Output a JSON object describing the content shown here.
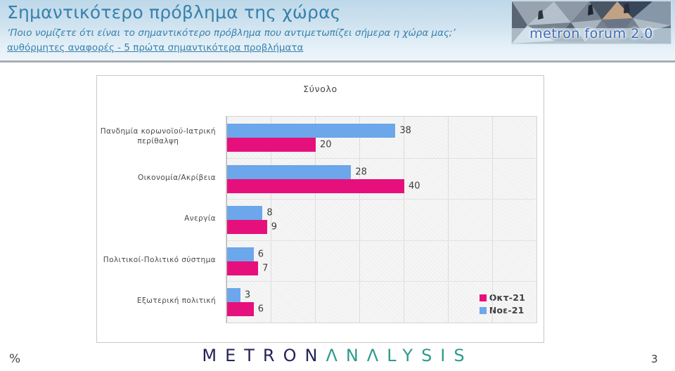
{
  "header": {
    "title": "Σημαντικότερο πρόβλημα της χώρας",
    "subtitle": "‘Ποιο νομίζετε ότι  είναι το σημαντικότερο πρόβλημα που αντιμετωπίζει σήμερα η χώρα μας;’",
    "note": "αυθόρμητες αναφορές - 5 πρώτα σημαντικότερα προβλήματα",
    "logo_text": "metron forum 2.0"
  },
  "chart_data": {
    "type": "bar",
    "orientation": "horizontal",
    "title": "Σύνολο",
    "categories": [
      "Πανδημία κορωνοϊού-Ιατρική\nπερίθαλψη",
      "Οικονομία/Ακρίβεια",
      "Ανεργία",
      "Πολιτικοί-Πολιτικό σύστημα",
      "Εξωτερική πολιτική"
    ],
    "series": [
      {
        "name": "Νοε-21",
        "color": "#6BA7EA",
        "values": [
          38,
          28,
          8,
          6,
          3
        ]
      },
      {
        "name": "Οκτ-21",
        "color": "#E6107C",
        "values": [
          20,
          40,
          9,
          7,
          6
        ]
      }
    ],
    "legend": [
      {
        "label": "Οκτ-21",
        "color": "#E6107C"
      },
      {
        "label": "Νοε-21",
        "color": "#6BA7EA"
      }
    ],
    "legend_position": "bottom-right",
    "xlim": [
      0,
      70
    ],
    "gridline_interval": 10,
    "value_labels": true,
    "grid": true
  },
  "footer": {
    "unit_label": "%",
    "brand_primary": "METRON",
    "brand_secondary": "ΛNΛLYSIS",
    "page_number": "3"
  }
}
